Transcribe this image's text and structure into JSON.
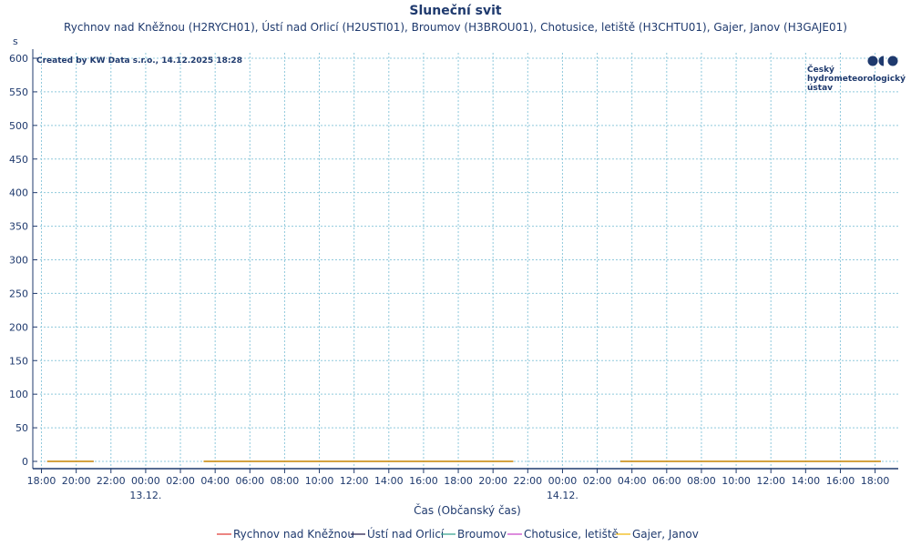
{
  "chart_data": {
    "type": "line",
    "title": "Sluneční svit",
    "subtitle": "Rychnov nad Kněžnou (H2RYCH01), Ústí nad Orlicí (H2USTI01), Broumov (H3BROU01), Chotusice, letiště (H3CHTU01), Gajer, Janov (H3GAJE01)",
    "ylabel": "s",
    "xlabel": "Čas (Občanský čas)",
    "ylim": [
      0,
      600
    ],
    "yticks": [
      0,
      50,
      100,
      150,
      200,
      250,
      300,
      350,
      400,
      450,
      500,
      550,
      600
    ],
    "xlim": [
      "2025-12-12T17:30",
      "2025-12-14T19:20"
    ],
    "xticks": [
      {
        "t": "2025-12-12T18:00",
        "label": "18:00"
      },
      {
        "t": "2025-12-12T20:00",
        "label": "20:00"
      },
      {
        "t": "2025-12-12T22:00",
        "label": "22:00"
      },
      {
        "t": "2025-12-13T00:00",
        "label": "00:00"
      },
      {
        "t": "2025-12-13T02:00",
        "label": "02:00"
      },
      {
        "t": "2025-12-13T04:00",
        "label": "04:00"
      },
      {
        "t": "2025-12-13T06:00",
        "label": "06:00"
      },
      {
        "t": "2025-12-13T08:00",
        "label": "08:00"
      },
      {
        "t": "2025-12-13T10:00",
        "label": "10:00"
      },
      {
        "t": "2025-12-13T12:00",
        "label": "12:00"
      },
      {
        "t": "2025-12-13T14:00",
        "label": "14:00"
      },
      {
        "t": "2025-12-13T16:00",
        "label": "16:00"
      },
      {
        "t": "2025-12-13T18:00",
        "label": "18:00"
      },
      {
        "t": "2025-12-13T20:00",
        "label": "20:00"
      },
      {
        "t": "2025-12-13T22:00",
        "label": "22:00"
      },
      {
        "t": "2025-12-14T00:00",
        "label": "00:00"
      },
      {
        "t": "2025-12-14T02:00",
        "label": "02:00"
      },
      {
        "t": "2025-12-14T04:00",
        "label": "04:00"
      },
      {
        "t": "2025-12-14T06:00",
        "label": "06:00"
      },
      {
        "t": "2025-12-14T08:00",
        "label": "08:00"
      },
      {
        "t": "2025-12-14T10:00",
        "label": "10:00"
      },
      {
        "t": "2025-12-14T12:00",
        "label": "12:00"
      },
      {
        "t": "2025-12-14T14:00",
        "label": "14:00"
      },
      {
        "t": "2025-12-14T16:00",
        "label": "16:00"
      },
      {
        "t": "2025-12-14T18:00",
        "label": "18:00"
      }
    ],
    "date_labels": [
      {
        "t": "2025-12-13T00:00",
        "label": "13.12."
      },
      {
        "t": "2025-12-14T00:00",
        "label": "14.12."
      }
    ],
    "grid": true,
    "legend_position": "bottom",
    "series": [
      {
        "name": "Rychnov nad Kněžnou",
        "color": "#e0332e",
        "segments": [
          {
            "x": [
              "2025-12-12T18:20",
              "2025-12-12T21:00"
            ],
            "y": [
              0,
              0
            ]
          },
          {
            "x": [
              "2025-12-13T03:20",
              "2025-12-13T21:10"
            ],
            "y": [
              0,
              0
            ]
          },
          {
            "x": [
              "2025-12-14T03:20",
              "2025-12-14T18:20"
            ],
            "y": [
              0,
              0
            ]
          }
        ]
      },
      {
        "name": "Ústí nad Orlicí",
        "color": "#1a1446",
        "segments": [
          {
            "x": [
              "2025-12-12T18:20",
              "2025-12-12T21:00"
            ],
            "y": [
              0,
              0
            ]
          },
          {
            "x": [
              "2025-12-13T03:20",
              "2025-12-13T21:10"
            ],
            "y": [
              0,
              0
            ]
          },
          {
            "x": [
              "2025-12-14T03:20",
              "2025-12-14T18:20"
            ],
            "y": [
              0,
              0
            ]
          }
        ]
      },
      {
        "name": "Broumov",
        "color": "#2fa08a",
        "segments": [
          {
            "x": [
              "2025-12-12T18:20",
              "2025-12-12T21:00"
            ],
            "y": [
              0,
              0
            ]
          },
          {
            "x": [
              "2025-12-13T03:20",
              "2025-12-13T21:10"
            ],
            "y": [
              0,
              0
            ]
          },
          {
            "x": [
              "2025-12-14T03:20",
              "2025-12-14T18:20"
            ],
            "y": [
              0,
              0
            ]
          }
        ]
      },
      {
        "name": "Chotusice, letiště",
        "color": "#c83fc8",
        "segments": [
          {
            "x": [
              "2025-12-12T18:20",
              "2025-12-12T21:00"
            ],
            "y": [
              0,
              0
            ]
          },
          {
            "x": [
              "2025-12-13T03:20",
              "2025-12-13T21:10"
            ],
            "y": [
              0,
              0
            ]
          },
          {
            "x": [
              "2025-12-14T03:20",
              "2025-12-14T18:20"
            ],
            "y": [
              0,
              0
            ]
          }
        ]
      },
      {
        "name": "Gajer, Janov",
        "color": "#f0b400",
        "segments": [
          {
            "x": [
              "2025-12-12T18:20",
              "2025-12-12T21:00"
            ],
            "y": [
              0,
              0
            ]
          },
          {
            "x": [
              "2025-12-13T03:20",
              "2025-12-13T21:10"
            ],
            "y": [
              0,
              0
            ]
          },
          {
            "x": [
              "2025-12-14T03:20",
              "2025-12-14T18:20"
            ],
            "y": [
              0,
              0
            ]
          }
        ]
      }
    ]
  },
  "credit": "Created by KW Data s.r.o., 14.12.2025 18:28",
  "logo": {
    "lines": [
      "Český",
      "hydrometeorologický",
      "ústav"
    ],
    "color": "#1f3a6e"
  },
  "colors": {
    "text": "#1f3a6e",
    "grid": "#8fc9dc",
    "axis": "#1f3a6e"
  }
}
